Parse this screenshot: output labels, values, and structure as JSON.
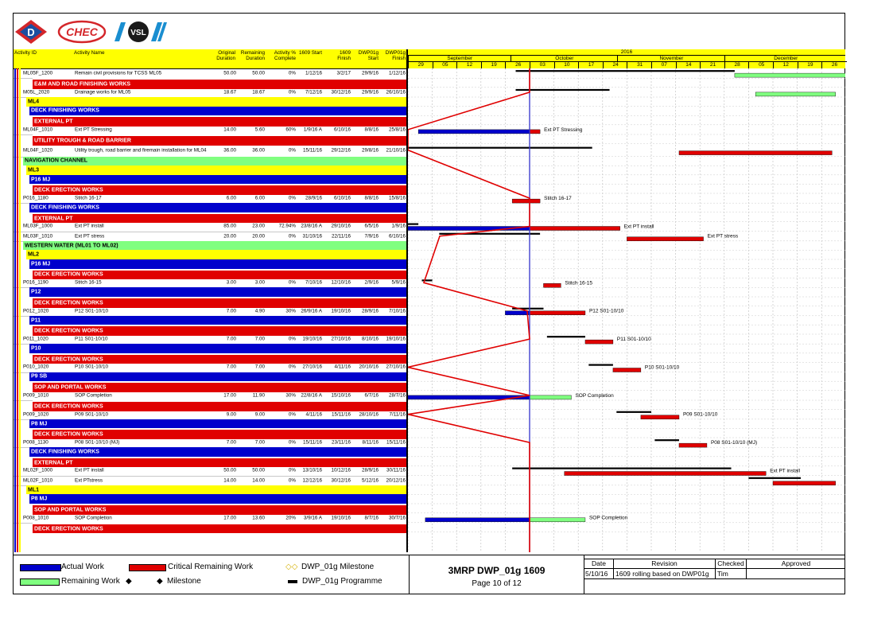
{
  "logos": [
    "D",
    "CHEC",
    "VSL"
  ],
  "header": {
    "activity_id": "Activity ID",
    "activity_name": "Activity Name",
    "orig_dur": "Original Duration",
    "rem_dur": "Remaining Duration",
    "pct": "Activity % Complete",
    "start_1609": "1609 Start",
    "finish_1609": "1609 Finish",
    "dwp_start": "DWP01g Start",
    "dwp_finish": "DWP01g Finish"
  },
  "timescale": {
    "year": "2016",
    "months": [
      "September",
      "October",
      "November",
      "December"
    ],
    "days": [
      "29",
      "05",
      "12",
      "19",
      "26",
      "03",
      "10",
      "17",
      "24",
      "31",
      "07",
      "14",
      "21",
      "28",
      "05",
      "12",
      "19",
      "26"
    ]
  },
  "rows": [
    {
      "t": "act",
      "id": "ML05F_1200",
      "name": "Remain civil provisions for TCSS ML05",
      "od": "50.00",
      "rd": "50.00",
      "pc": "0%",
      "s": "1/12/16",
      "f": "3/2/17",
      "ds": "29/9/16",
      "df": "1/12/16"
    },
    {
      "t": "wbs",
      "c": "red",
      "label": "E&M AND ROAD FINISHING WORKS"
    },
    {
      "t": "act",
      "id": "M05L_2020",
      "name": "Drainage works for ML05",
      "od": "18.67",
      "rd": "18.67",
      "pc": "0%",
      "s": "7/12/16",
      "f": "30/12/16",
      "ds": "29/9/16",
      "df": "26/10/16"
    },
    {
      "t": "wbs",
      "c": "yellow",
      "label": "ML4"
    },
    {
      "t": "wbs",
      "c": "blue",
      "label": "DECK FINISHING WORKS"
    },
    {
      "t": "wbs",
      "c": "red",
      "label": "EXTERNAL PT"
    },
    {
      "t": "act",
      "id": "ML04F_1010",
      "name": "Ext PT Stressing",
      "od": "14.00",
      "rd": "5.60",
      "pc": "60%",
      "s": "1/9/16 A",
      "f": "6/10/16",
      "ds": "8/8/16",
      "df": "25/8/16"
    },
    {
      "t": "wbs",
      "c": "red",
      "label": "UTILITY TROUGH & ROAD BARRIER"
    },
    {
      "t": "act2",
      "id": "ML04F_1020",
      "name": "Utility trough, road barrier and firemain installation for ML04",
      "od": "36.00",
      "rd": "36.00",
      "pc": "0%",
      "s": "15/11/16",
      "f": "29/12/16",
      "ds": "29/8/16",
      "df": "21/10/16"
    },
    {
      "t": "wbs",
      "c": "green",
      "label": "NAVIGATION CHANNEL"
    },
    {
      "t": "wbs",
      "c": "yellow",
      "label": "ML3"
    },
    {
      "t": "wbs",
      "c": "blue",
      "label": "P16 MJ"
    },
    {
      "t": "wbs",
      "c": "red",
      "label": "DECK ERECTION WORKS"
    },
    {
      "t": "act",
      "id": "P016_1180",
      "name": "Stitch 16-17",
      "od": "6.00",
      "rd": "6.00",
      "pc": "0%",
      "s": "28/9/16",
      "f": "6/10/16",
      "ds": "8/8/16",
      "df": "15/8/16"
    },
    {
      "t": "wbs",
      "c": "blue",
      "label": "DECK FINISHING WORKS"
    },
    {
      "t": "wbs",
      "c": "red",
      "label": "EXTERNAL PT"
    },
    {
      "t": "act",
      "id": "ML03F_1000",
      "name": "Ext PT install",
      "od": "85.00",
      "rd": "23.00",
      "pc": "72.94%",
      "s": "23/8/16 A",
      "f": "29/10/16",
      "ds": "6/5/16",
      "df": "1/9/16"
    },
    {
      "t": "act",
      "id": "ML03F_1010",
      "name": "Ext PT stress",
      "od": "20.00",
      "rd": "20.00",
      "pc": "0%",
      "s": "31/10/16",
      "f": "22/11/16",
      "ds": "7/9/16",
      "df": "6/10/16"
    },
    {
      "t": "wbs",
      "c": "green",
      "label": "WESTERN WATER (ML01 TO ML02)"
    },
    {
      "t": "wbs",
      "c": "yellow",
      "label": "ML2"
    },
    {
      "t": "wbs",
      "c": "blue",
      "label": "P16 MJ"
    },
    {
      "t": "wbs",
      "c": "red",
      "label": "DECK ERECTION WORKS"
    },
    {
      "t": "act",
      "id": "P016_1190",
      "name": "Stitch 16-15",
      "od": "3.00",
      "rd": "3.00",
      "pc": "0%",
      "s": "7/10/16",
      "f": "12/10/16",
      "ds": "2/9/16",
      "df": "5/9/16"
    },
    {
      "t": "wbs",
      "c": "blue",
      "label": "P12"
    },
    {
      "t": "wbs",
      "c": "red",
      "label": "DECK ERECTION WORKS"
    },
    {
      "t": "act",
      "id": "P012_1020",
      "name": "P12 S01-10/10",
      "od": "7.00",
      "rd": "4.90",
      "pc": "30%",
      "s": "26/9/16 A",
      "f": "19/10/16",
      "ds": "28/9/16",
      "df": "7/10/16"
    },
    {
      "t": "wbs",
      "c": "blue",
      "label": "P11"
    },
    {
      "t": "wbs",
      "c": "red",
      "label": "DECK ERECTION WORKS"
    },
    {
      "t": "act",
      "id": "P011_1020",
      "name": "P11 S01-10/10",
      "od": "7.00",
      "rd": "7.00",
      "pc": "0%",
      "s": "19/10/16",
      "f": "27/10/16",
      "ds": "8/10/16",
      "df": "19/10/16"
    },
    {
      "t": "wbs",
      "c": "blue",
      "label": "P10"
    },
    {
      "t": "wbs",
      "c": "red",
      "label": "DECK ERECTION WORKS"
    },
    {
      "t": "act",
      "id": "P010_1020",
      "name": "P10 S01-10/10",
      "od": "7.00",
      "rd": "7.00",
      "pc": "0%",
      "s": "27/10/16",
      "f": "4/11/16",
      "ds": "20/10/16",
      "df": "27/10/16"
    },
    {
      "t": "wbs",
      "c": "blue",
      "label": "P9 SB"
    },
    {
      "t": "wbs",
      "c": "red",
      "label": "SOP AND PORTAL WORKS"
    },
    {
      "t": "act",
      "id": "P009_1010",
      "name": "SOP Completion",
      "od": "17.00",
      "rd": "11.90",
      "pc": "30%",
      "s": "22/8/16 A",
      "f": "15/10/16",
      "ds": "6/7/16",
      "df": "28/7/16"
    },
    {
      "t": "wbs",
      "c": "red",
      "label": "DECK ERECTION WORKS"
    },
    {
      "t": "act",
      "id": "P009_1020",
      "name": "P09 S01-10/10",
      "od": "9.00",
      "rd": "9.00",
      "pc": "0%",
      "s": "4/11/16",
      "f": "15/11/16",
      "ds": "28/10/16",
      "df": "7/11/16"
    },
    {
      "t": "wbs",
      "c": "blue",
      "label": "P8 MJ"
    },
    {
      "t": "wbs",
      "c": "red",
      "label": "DECK ERECTION WORKS"
    },
    {
      "t": "act",
      "id": "P008_1130",
      "name": "P08 S01-10/10 (MJ)",
      "od": "7.00",
      "rd": "7.00",
      "pc": "0%",
      "s": "15/11/16",
      "f": "23/11/16",
      "ds": "8/11/16",
      "df": "15/11/16"
    },
    {
      "t": "wbs",
      "c": "blue",
      "label": "DECK FINISHING WORKS"
    },
    {
      "t": "wbs",
      "c": "red",
      "label": "EXTERNAL PT"
    },
    {
      "t": "act",
      "id": "ML02F_1000",
      "name": "Ext PT install",
      "od": "50.00",
      "rd": "50.00",
      "pc": "0%",
      "s": "13/10/16",
      "f": "10/12/16",
      "ds": "28/9/16",
      "df": "30/11/16"
    },
    {
      "t": "act",
      "id": "ML02F_1010",
      "name": "Ext PTstress",
      "od": "14.00",
      "rd": "14.00",
      "pc": "0%",
      "s": "12/12/16",
      "f": "30/12/16",
      "ds": "5/12/16",
      "df": "20/12/16"
    },
    {
      "t": "wbs",
      "c": "yellow",
      "label": "ML1"
    },
    {
      "t": "wbs",
      "c": "blue",
      "label": "P8 MJ"
    },
    {
      "t": "wbs",
      "c": "red",
      "label": "SOP AND PORTAL WORKS"
    },
    {
      "t": "act",
      "id": "P008_1010",
      "name": "SOP Completion",
      "od": "17.00",
      "rd": "13.60",
      "pc": "20%",
      "s": "3/9/16 A",
      "f": "19/10/16",
      "ds": "8/7/16",
      "df": "30/7/16"
    },
    {
      "t": "wbs",
      "c": "red",
      "label": "DECK ERECTION WORKS"
    }
  ],
  "gantt_labels": {
    "ML04F_1010": "Ext PT Stressing",
    "P016_1180": "Stitch 16-17",
    "ML03F_1000": "Ext PT install",
    "ML03F_1010": "Ext PT stress",
    "P016_1190": "Stitch 16-15",
    "P012_1020": "P12 S01-10/10",
    "P011_1020": "P11 S01-10/10",
    "P010_1020": "P10 S01-10/10",
    "P009_1010": "SOP Completion",
    "P009_1020": "P09 S01-10/10",
    "P008_1130": "P08 S01-10/10 (MJ)",
    "ML02F_1000": "Ext PT install",
    "P008_1010": "SOP Completion"
  },
  "legend": {
    "actual": "Actual Work",
    "critical": "Critical Remaining Work",
    "dwp_milestone": "DWP_01g Milestone",
    "remaining": "Remaining Work",
    "milestone": "Milestone",
    "dwp_programme": "DWP_01g Programme"
  },
  "title_block": {
    "title": "3MRP DWP_01g 1609",
    "page": "Page 10 of 12",
    "date_h": "Date",
    "rev_h": "Revision",
    "checked_h": "Checked",
    "approved_h": "Approved",
    "date": "5/10/16",
    "revision": "1609 rolling based on DWP01g",
    "checked": "Tim",
    "approved": ""
  },
  "colors": {
    "blue": "#0000cc",
    "red": "#e00000",
    "green": "#80ff80",
    "yellow": "#ffff00",
    "data_date": "#3333cc"
  }
}
